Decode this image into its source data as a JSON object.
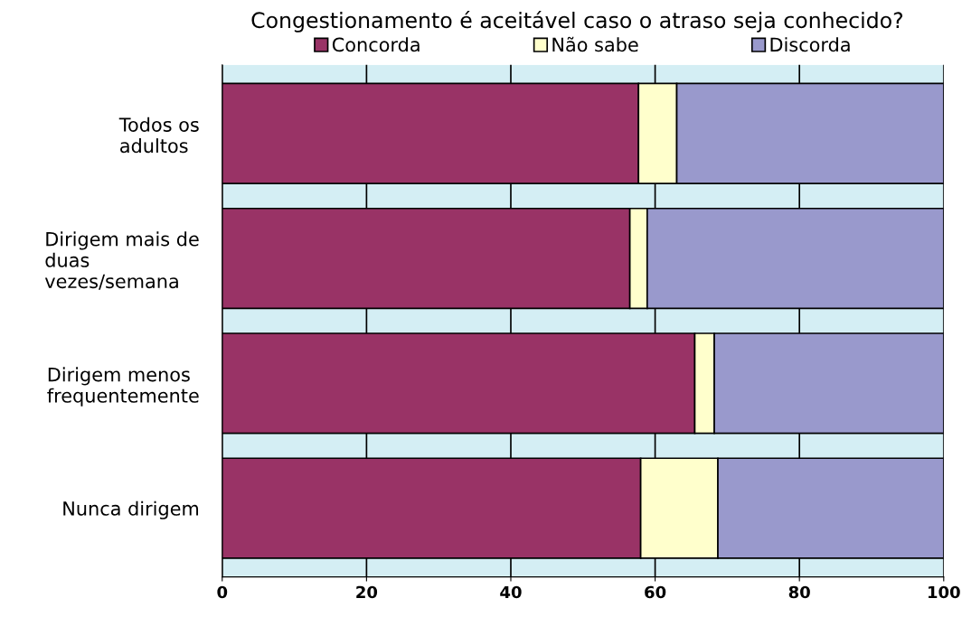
{
  "chart_data": {
    "type": "bar",
    "orientation": "horizontal",
    "stacked": true,
    "title": "Congestionamento é aceitável caso o atraso seja conhecido?",
    "categories": [
      "Todos os\nadultos",
      "Dirigem mais de\nduas\nvezes/semana",
      "Dirigem menos\nfrequentemente",
      "Nunca dirigem"
    ],
    "series": [
      {
        "name": "Concorda",
        "color": "#993366",
        "values": [
          57.7,
          56.5,
          65.5,
          58.0
        ]
      },
      {
        "name": "Não sabe",
        "color": "#ffffcc",
        "values": [
          5.3,
          2.4,
          2.7,
          10.7
        ]
      },
      {
        "name": "Discorda",
        "color": "#9999cc",
        "values": [
          37.0,
          41.1,
          31.8,
          31.3
        ]
      }
    ],
    "xlim": [
      0,
      100
    ],
    "xticks": [
      0,
      20,
      40,
      60,
      80,
      100
    ],
    "grid": "x",
    "legend": "top",
    "bands": [
      {
        "axis": "x",
        "from": 0,
        "to": 100,
        "color": "#d4eef4"
      }
    ]
  }
}
